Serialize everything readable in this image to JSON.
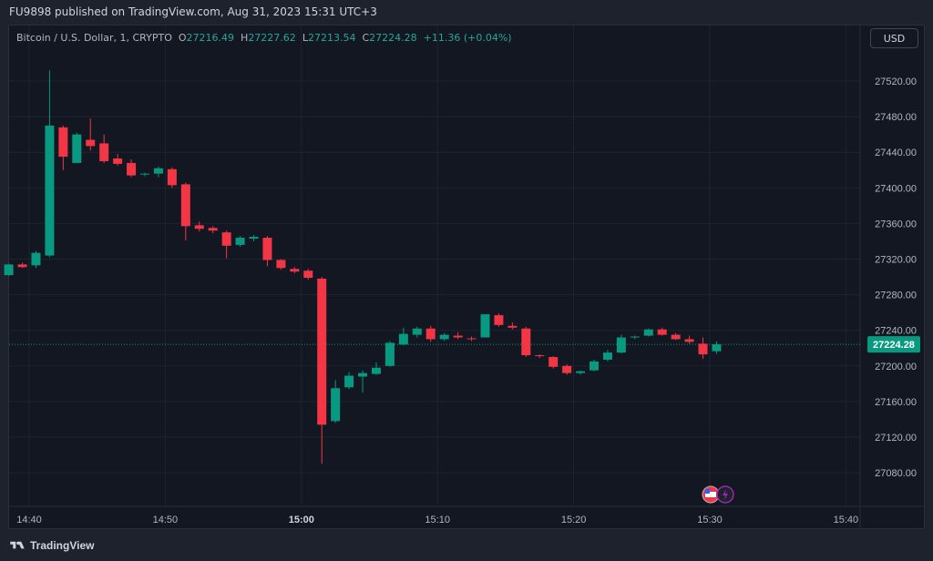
{
  "header": {
    "published": "FU9898 published on TradingView.com, Aug 31, 2023 15:31 UTC+3"
  },
  "legend": {
    "symbol": "Bitcoin / U.S. Dollar, 1, CRYPTO",
    "o_label": "O",
    "o_value": "27216.49",
    "h_label": "H",
    "h_value": "27227.62",
    "l_label": "L",
    "l_value": "27213.54",
    "c_label": "C",
    "c_value": "27224.28",
    "change": "+11.36 (+0.04%)"
  },
  "currency_button": "USD",
  "footer": {
    "brand": "TradingView"
  },
  "colors": {
    "up": "#089981",
    "down": "#f23645",
    "last_price_bg": "#089981",
    "grid": "#1f2330",
    "background": "#131722"
  },
  "icons": [
    "us-flag-icon",
    "lightning-icon"
  ],
  "chart_data": {
    "type": "candlestick",
    "interval_minutes": 1,
    "ylim": [
      27060,
      27560
    ],
    "y_ticks": [
      "27520.00",
      "27480.00",
      "27440.00",
      "27400.00",
      "27360.00",
      "27320.00",
      "27280.00",
      "27240.00",
      "27200.00",
      "27160.00",
      "27120.00",
      "27080.00"
    ],
    "x_ticks": [
      "14:40",
      "14:50",
      "15:00",
      "15:10",
      "15:20",
      "15:30",
      "15:40"
    ],
    "x_tick_minutes": [
      0,
      10,
      20,
      30,
      40,
      50,
      60
    ],
    "bold_x_tick": "15:00",
    "last_price": 27224.28,
    "last_price_label": "27224.28",
    "candles": [
      {
        "t": -1.5,
        "o": 27302,
        "h": 27315,
        "l": 27301,
        "c": 27314
      },
      {
        "t": -0.5,
        "o": 27314,
        "h": 27316,
        "l": 27310,
        "c": 27311
      },
      {
        "t": 0.5,
        "o": 27313,
        "h": 27329,
        "l": 27310,
        "c": 27327
      },
      {
        "t": 1.5,
        "o": 27324,
        "h": 27532,
        "l": 27322,
        "c": 27470
      },
      {
        "t": 2.5,
        "o": 27468,
        "h": 27470,
        "l": 27420,
        "c": 27435
      },
      {
        "t": 3.5,
        "o": 27428,
        "h": 27462,
        "l": 27428,
        "c": 27460
      },
      {
        "t": 4.5,
        "o": 27454,
        "h": 27478,
        "l": 27442,
        "c": 27447
      },
      {
        "t": 5.5,
        "o": 27450,
        "h": 27460,
        "l": 27428,
        "c": 27430
      },
      {
        "t": 6.5,
        "o": 27433,
        "h": 27438,
        "l": 27425,
        "c": 27427
      },
      {
        "t": 7.5,
        "o": 27428,
        "h": 27432,
        "l": 27412,
        "c": 27414
      },
      {
        "t": 8.5,
        "o": 27415,
        "h": 27417,
        "l": 27413,
        "c": 27416
      },
      {
        "t": 9.5,
        "o": 27416,
        "h": 27424,
        "l": 27412,
        "c": 27422
      },
      {
        "t": 10.5,
        "o": 27421,
        "h": 27423,
        "l": 27400,
        "c": 27403
      },
      {
        "t": 11.5,
        "o": 27404,
        "h": 27406,
        "l": 27341,
        "c": 27357
      },
      {
        "t": 12.5,
        "o": 27358,
        "h": 27362,
        "l": 27351,
        "c": 27354
      },
      {
        "t": 13.5,
        "o": 27355,
        "h": 27357,
        "l": 27349,
        "c": 27352
      },
      {
        "t": 14.5,
        "o": 27350,
        "h": 27352,
        "l": 27321,
        "c": 27335
      },
      {
        "t": 15.5,
        "o": 27336,
        "h": 27346,
        "l": 27334,
        "c": 27344
      },
      {
        "t": 16.5,
        "o": 27343,
        "h": 27347,
        "l": 27340,
        "c": 27345
      },
      {
        "t": 17.5,
        "o": 27344,
        "h": 27346,
        "l": 27312,
        "c": 27319
      },
      {
        "t": 18.5,
        "o": 27319,
        "h": 27320,
        "l": 27308,
        "c": 27310
      },
      {
        "t": 19.5,
        "o": 27309,
        "h": 27311,
        "l": 27304,
        "c": 27306
      },
      {
        "t": 20.5,
        "o": 27307,
        "h": 27309,
        "l": 27297,
        "c": 27299
      },
      {
        "t": 21.5,
        "o": 27298,
        "h": 27300,
        "l": 27090,
        "c": 27134
      },
      {
        "t": 22.5,
        "o": 27138,
        "h": 27184,
        "l": 27136,
        "c": 27175
      },
      {
        "t": 23.5,
        "o": 27176,
        "h": 27193,
        "l": 27174,
        "c": 27189
      },
      {
        "t": 24.5,
        "o": 27188,
        "h": 27195,
        "l": 27170,
        "c": 27192
      },
      {
        "t": 25.5,
        "o": 27191,
        "h": 27204,
        "l": 27190,
        "c": 27198
      },
      {
        "t": 26.5,
        "o": 27200,
        "h": 27228,
        "l": 27199,
        "c": 27226
      },
      {
        "t": 27.5,
        "o": 27224,
        "h": 27243,
        "l": 27223,
        "c": 27236
      },
      {
        "t": 28.5,
        "o": 27235,
        "h": 27244,
        "l": 27232,
        "c": 27242
      },
      {
        "t": 29.5,
        "o": 27242,
        "h": 27245,
        "l": 27227,
        "c": 27230
      },
      {
        "t": 30.5,
        "o": 27230,
        "h": 27237,
        "l": 27228,
        "c": 27235
      },
      {
        "t": 31.5,
        "o": 27234,
        "h": 27238,
        "l": 27230,
        "c": 27232
      },
      {
        "t": 32.5,
        "o": 27231,
        "h": 27233,
        "l": 27228,
        "c": 27230
      },
      {
        "t": 33.5,
        "o": 27232,
        "h": 27258,
        "l": 27232,
        "c": 27258
      },
      {
        "t": 34.5,
        "o": 27257,
        "h": 27259,
        "l": 27244,
        "c": 27246
      },
      {
        "t": 35.5,
        "o": 27245,
        "h": 27249,
        "l": 27241,
        "c": 27243
      },
      {
        "t": 36.5,
        "o": 27242,
        "h": 27244,
        "l": 27210,
        "c": 27212
      },
      {
        "t": 37.5,
        "o": 27212,
        "h": 27213,
        "l": 27209,
        "c": 27211
      },
      {
        "t": 38.5,
        "o": 27210,
        "h": 27211,
        "l": 27197,
        "c": 27199
      },
      {
        "t": 39.5,
        "o": 27200,
        "h": 27202,
        "l": 27190,
        "c": 27192
      },
      {
        "t": 40.5,
        "o": 27192,
        "h": 27195,
        "l": 27190,
        "c": 27194
      },
      {
        "t": 41.5,
        "o": 27195,
        "h": 27207,
        "l": 27194,
        "c": 27205
      },
      {
        "t": 42.5,
        "o": 27207,
        "h": 27218,
        "l": 27205,
        "c": 27215
      },
      {
        "t": 43.5,
        "o": 27215,
        "h": 27235,
        "l": 27214,
        "c": 27232
      },
      {
        "t": 44.5,
        "o": 27232,
        "h": 27234,
        "l": 27230,
        "c": 27233
      },
      {
        "t": 45.5,
        "o": 27234,
        "h": 27242,
        "l": 27233,
        "c": 27241
      },
      {
        "t": 46.5,
        "o": 27241,
        "h": 27243,
        "l": 27234,
        "c": 27235
      },
      {
        "t": 47.5,
        "o": 27235,
        "h": 27237,
        "l": 27229,
        "c": 27230
      },
      {
        "t": 48.5,
        "o": 27230,
        "h": 27234,
        "l": 27225,
        "c": 27227
      },
      {
        "t": 49.5,
        "o": 27225,
        "h": 27232,
        "l": 27208,
        "c": 27213
      },
      {
        "t": 50.5,
        "o": 27216.49,
        "h": 27227.62,
        "l": 27213.54,
        "c": 27224.28
      }
    ]
  }
}
